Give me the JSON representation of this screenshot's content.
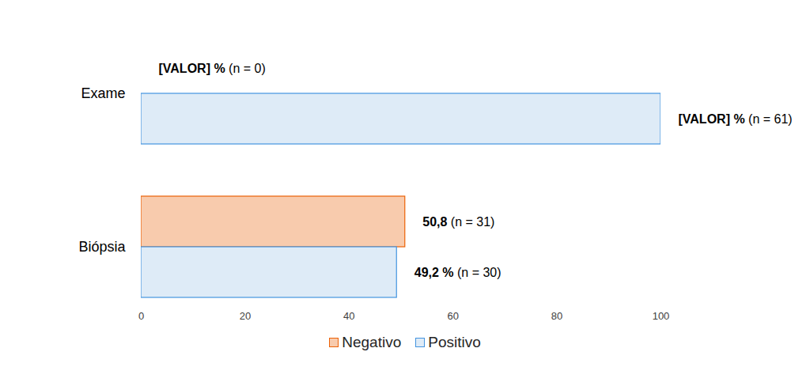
{
  "chart_data": {
    "type": "bar",
    "orientation": "horizontal",
    "categories": [
      "Exame",
      "Biópsia"
    ],
    "series": [
      {
        "name": "Negativo",
        "color": "#f8cbad",
        "values": [
          0,
          50.8
        ],
        "value_labels": [
          "[VALOR] % (n = 0)",
          "50,8 (n = 31)"
        ]
      },
      {
        "name": "Positivo",
        "color": "#deebf7",
        "values": [
          100,
          49.2
        ],
        "value_labels": [
          "[VALOR] % (n = 61)",
          "49,2 % (n = 30)"
        ]
      }
    ],
    "xlim": [
      0,
      100
    ],
    "xticks": [
      0,
      20,
      40,
      60,
      80,
      100
    ],
    "grid": false,
    "legend": "bottom",
    "data_labels": true
  }
}
